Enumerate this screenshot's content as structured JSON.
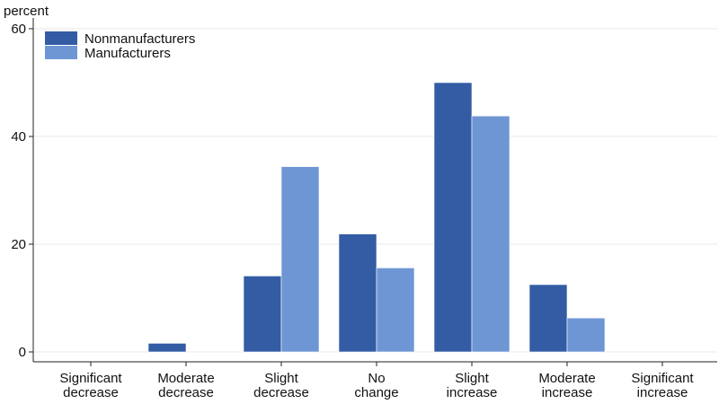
{
  "chart_data": {
    "type": "bar",
    "ylabel": "percent",
    "ylim": [
      0,
      60
    ],
    "yticks": [
      0,
      20,
      40,
      60
    ],
    "grid": true,
    "legend_position": "top-left",
    "categories": [
      [
        "Significant",
        "decrease"
      ],
      [
        "Moderate",
        "decrease"
      ],
      [
        "Slight",
        "decrease"
      ],
      [
        "No",
        "change"
      ],
      [
        "Slight",
        "increase"
      ],
      [
        "Moderate",
        "increase"
      ],
      [
        "Significant",
        "increase"
      ]
    ],
    "series": [
      {
        "name": "Nonmanufacturers",
        "color": "#335ca4",
        "values": [
          0,
          1.6,
          14.1,
          21.9,
          50.0,
          12.5,
          0
        ]
      },
      {
        "name": "Manufacturers",
        "color": "#6e96d4",
        "values": [
          0,
          0,
          34.4,
          15.6,
          43.8,
          6.3,
          0
        ]
      }
    ]
  }
}
